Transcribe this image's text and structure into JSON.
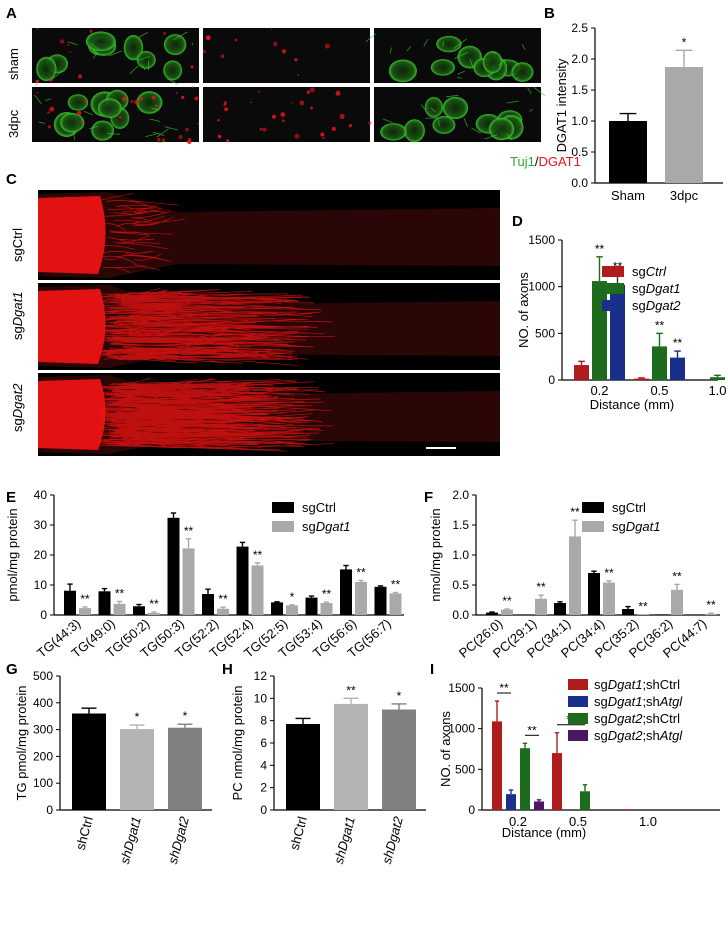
{
  "panel_letters": {
    "a": "A",
    "b": "B",
    "c": "C",
    "d": "D",
    "e": "E",
    "f": "F",
    "g": "G",
    "h": "H",
    "i": "I"
  },
  "micrograph_a": {
    "rows": [
      "sham",
      "3dpc"
    ],
    "legend_green": "Tuj1",
    "legend_slash": "/",
    "legend_red": "DGAT1",
    "colors": {
      "green": "#39d12e",
      "red": "#e8141c",
      "background": "#0a0a0a"
    }
  },
  "micrograph_c": {
    "rows": [
      {
        "prefix": "sg",
        "italic": "Ctrl"
      },
      {
        "prefix": "sg",
        "italic": "Dgat1"
      },
      {
        "prefix": "sg",
        "italic": "Dgat2"
      }
    ],
    "colors": {
      "red": "#f21414",
      "background": "#000000"
    }
  },
  "chart_data": [
    {
      "id": "B",
      "type": "bar",
      "categories": [
        "Sham",
        "3dpc"
      ],
      "values": [
        1.0,
        1.87
      ],
      "errors": [
        0.12,
        0.27
      ],
      "significance": [
        "",
        "*"
      ],
      "ylabel": "DGAT1 intensity",
      "ylim": [
        0,
        2.5
      ],
      "yticks": [
        "0.0",
        "0.5",
        "1.0",
        "1.5",
        "2.0",
        "2.5"
      ],
      "colors": [
        "#000000",
        "#a9a9a9"
      ]
    },
    {
      "id": "D",
      "type": "bar",
      "categories": [
        "0.2",
        "0.5",
        "1.0"
      ],
      "series": [
        {
          "name": "sgCtrl",
          "values": [
            160,
            15,
            0
          ],
          "errors": [
            40,
            8,
            0
          ],
          "color": "#b01c1c"
        },
        {
          "name": "sgDgat1",
          "values": [
            1060,
            360,
            30
          ],
          "errors": [
            260,
            140,
            20
          ],
          "color": "#1d6b1d"
        },
        {
          "name": "sgDgat2",
          "values": [
            1020,
            240,
            0
          ],
          "errors": [
            110,
            70,
            0
          ],
          "color": "#1a2f8c"
        }
      ],
      "significance": [
        [
          "",
          "**",
          "**"
        ],
        [
          "",
          "**",
          "**"
        ],
        [
          "",
          "",
          ""
        ]
      ],
      "ylabel": "NO. of axons",
      "xlabel": "Distance (mm)",
      "ylim": [
        0,
        1500
      ],
      "yticks": [
        "0",
        "500",
        "1000",
        "1500"
      ],
      "legend": [
        {
          "prefix": "sg",
          "italic": "Ctrl"
        },
        {
          "prefix": "sg",
          "italic": "Dgat1"
        },
        {
          "prefix": "sg",
          "italic": "Dgat2"
        }
      ]
    },
    {
      "id": "E",
      "type": "bar",
      "categories": [
        "TG(44:3)",
        "TG(49:0)",
        "TG(50:2)",
        "TG(50:3)",
        "TG(52:2)",
        "TG(52:4)",
        "TG(52:5)",
        "TG(53:4)",
        "TG(56:6)",
        "TG(56:7)"
      ],
      "series": [
        {
          "name": "sgCtrl",
          "values": [
            8.1,
            7.9,
            2.9,
            32.4,
            7.0,
            22.8,
            4.2,
            5.8,
            15.2,
            9.4
          ],
          "errors": [
            2.2,
            0.9,
            0.6,
            1.6,
            1.6,
            1.4,
            0.2,
            0.5,
            1.3,
            0.3
          ],
          "color": "#000000"
        },
        {
          "name": "sgDgat1",
          "values": [
            2.3,
            3.7,
            0.7,
            22.2,
            2.1,
            16.5,
            3.2,
            4.0,
            11.0,
            7.2
          ],
          "errors": [
            0.4,
            0.8,
            0.3,
            3.2,
            0.5,
            0.9,
            0.2,
            0.3,
            0.5,
            0.3
          ],
          "color": "#a9a9a9"
        }
      ],
      "significance": [
        "**",
        "**",
        "**",
        "**",
        "**",
        "**",
        "*",
        "**",
        "**",
        "**"
      ],
      "ylabel": "pmol/mg protein",
      "ylim": [
        0,
        40
      ],
      "yticks": [
        "0",
        "10",
        "20",
        "30",
        "40"
      ],
      "legend": [
        {
          "prefix": "sgCtrl",
          "italic": ""
        },
        {
          "prefix": "sg",
          "italic": "Dgat1"
        }
      ]
    },
    {
      "id": "F",
      "type": "bar",
      "categories": [
        "PC(26:0)",
        "PC(29:1)",
        "PC(34:1)",
        "PC(34:4)",
        "PC(35:2)",
        "PC(36:2)",
        "PC(44:7)"
      ],
      "series": [
        {
          "name": "sgCtrl",
          "values": [
            0.04,
            0.0,
            0.2,
            0.7,
            0.1,
            0.01,
            0.0
          ],
          "errors": [
            0.01,
            0.0,
            0.02,
            0.03,
            0.04,
            0.0,
            0.0
          ],
          "color": "#000000"
        },
        {
          "name": "sgDgat1",
          "values": [
            0.09,
            0.27,
            1.31,
            0.54,
            0.01,
            0.42,
            0.02
          ],
          "errors": [
            0.01,
            0.06,
            0.27,
            0.03,
            0.0,
            0.09,
            0.01
          ],
          "color": "#a9a9a9"
        }
      ],
      "significance": [
        "**",
        "**",
        "**",
        "**",
        "**",
        "**",
        "**"
      ],
      "ylabel": "nmol/mg protein",
      "ylim": [
        0,
        2.0
      ],
      "yticks": [
        "0.0",
        "0.5",
        "1.0",
        "1.5",
        "2.0"
      ],
      "legend": [
        {
          "prefix": "sgCtrl",
          "italic": ""
        },
        {
          "prefix": "sg",
          "italic": "Dgat1"
        }
      ]
    },
    {
      "id": "G",
      "type": "bar",
      "categories": [
        {
          "prefix": "sh",
          "italic": "Ctrl",
          "plainItalic": false
        },
        {
          "prefix": "sh",
          "italic": "Dgat1"
        },
        {
          "prefix": "sh",
          "italic": "Dgat2"
        }
      ],
      "values": [
        360,
        302,
        307
      ],
      "errors": [
        20,
        15,
        13
      ],
      "significance": [
        "",
        "*",
        "*"
      ],
      "ylabel": "TG pmol/mg protein",
      "ylim": [
        0,
        500
      ],
      "yticks": [
        "0",
        "100",
        "200",
        "300",
        "400",
        "500"
      ],
      "colors": [
        "#000000",
        "#b3b3b3",
        "#808080"
      ]
    },
    {
      "id": "H",
      "type": "bar",
      "categories": [
        {
          "prefix": "sh",
          "italic": "Ctrl",
          "plainItalic": false
        },
        {
          "prefix": "sh",
          "italic": "Dgat1"
        },
        {
          "prefix": "sh",
          "italic": "Dgat2"
        }
      ],
      "values": [
        7.7,
        9.5,
        9.0
      ],
      "errors": [
        0.5,
        0.5,
        0.5
      ],
      "significance": [
        "",
        "**",
        "*"
      ],
      "ylabel": "PC nmol/mg protein",
      "ylim": [
        0,
        12
      ],
      "yticks": [
        "0",
        "2",
        "4",
        "6",
        "8",
        "10",
        "12"
      ],
      "colors": [
        "#000000",
        "#b3b3b3",
        "#808080"
      ]
    },
    {
      "id": "I",
      "type": "bar",
      "categories": [
        "0.2",
        "0.5",
        "1.0"
      ],
      "series": [
        {
          "name": "sgDgat1;shCtrl",
          "values": [
            1090,
            700,
            10
          ],
          "errors": [
            250,
            250,
            0
          ],
          "color": "#b01c1c"
        },
        {
          "name": "sgDgat1;shAtgl",
          "values": [
            195,
            0,
            0
          ],
          "errors": [
            50,
            0,
            0
          ],
          "color": "#1a2f8c"
        },
        {
          "name": "sgDgat2;shCtrl",
          "values": [
            760,
            230,
            0
          ],
          "errors": [
            60,
            80,
            0
          ],
          "color": "#1d6b1d"
        },
        {
          "name": "sgDgat2;shAtgl",
          "values": [
            105,
            0,
            0
          ],
          "errors": [
            20,
            0,
            0
          ],
          "color": "#4b1763"
        }
      ],
      "brackets": [
        {
          "category": 0,
          "from": 0,
          "to": 1,
          "label": "**"
        },
        {
          "category": 0,
          "from": 2,
          "to": 3,
          "label": "**"
        },
        {
          "category": 1,
          "from": 0,
          "to": 2,
          "label": "**"
        }
      ],
      "ylabel": "NO. of axons",
      "xlabel": "Distance (mm)",
      "ylim": [
        0,
        1500
      ],
      "yticks": [
        "0",
        "500",
        "1000",
        "1500"
      ],
      "legend": [
        {
          "a": "sg",
          "b": "Dgat1",
          "c": ";shCtrl",
          "d": ""
        },
        {
          "a": "sg",
          "b": "Dgat1",
          "c": ";sh",
          "d": "Atgl"
        },
        {
          "a": "sg",
          "b": "Dgat2",
          "c": ";shCtrl",
          "d": ""
        },
        {
          "a": "sg",
          "b": "Dgat2",
          "c": ";sh",
          "d": "Atgl"
        }
      ]
    }
  ]
}
